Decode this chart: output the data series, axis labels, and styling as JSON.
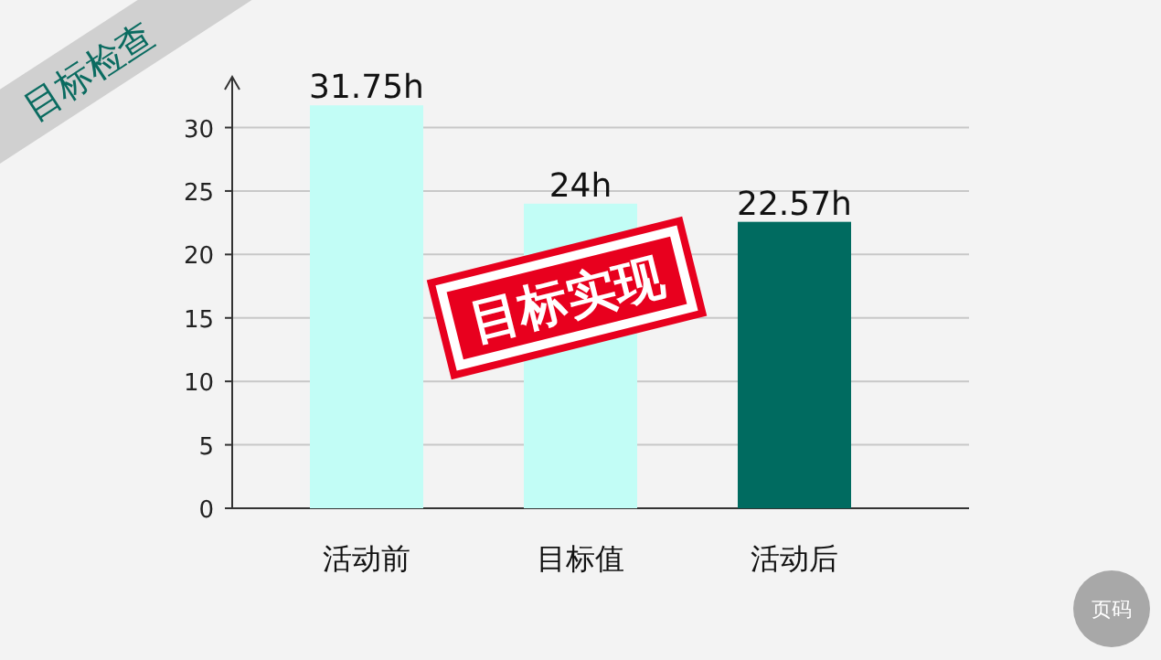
{
  "chart_data": {
    "type": "bar",
    "title": "目标检查",
    "categories": [
      "活动前",
      "目标值",
      "活动后"
    ],
    "values": [
      31.75,
      24,
      22.57
    ],
    "colors": [
      "#c2fdf6",
      "#c2fdf6",
      "#006b60"
    ],
    "value_labels": [
      "31.75h",
      "24h",
      "22.57h"
    ],
    "ylim": [
      0,
      34
    ],
    "yticks": [
      0,
      5,
      10,
      15,
      20,
      25,
      30
    ],
    "grid": "y",
    "annotations": [
      "目标实现",
      "页码"
    ]
  }
}
